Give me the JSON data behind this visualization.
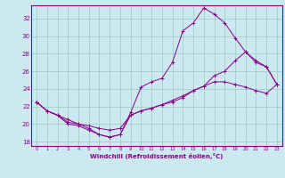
{
  "xlabel": "Windchill (Refroidissement éolien,°C)",
  "bg_color": "#cce8f0",
  "grid_color": "#99ccbb",
  "line_color": "#880088",
  "spine_color": "#880088",
  "xlim": [
    -0.5,
    23.5
  ],
  "ylim": [
    17.5,
    33.5
  ],
  "yticks": [
    18,
    20,
    22,
    24,
    26,
    28,
    30,
    32
  ],
  "xticks": [
    0,
    1,
    2,
    3,
    4,
    5,
    6,
    7,
    8,
    9,
    10,
    11,
    12,
    13,
    14,
    15,
    16,
    17,
    18,
    19,
    20,
    21,
    22,
    23
  ],
  "series1_x": [
    0,
    1,
    2,
    3,
    4,
    5,
    6,
    7,
    8,
    9,
    10,
    11,
    12,
    13,
    14,
    15,
    16,
    17,
    18,
    19,
    20,
    21,
    22,
    23
  ],
  "series1_y": [
    22.5,
    21.5,
    21.0,
    20.2,
    20.0,
    19.5,
    18.8,
    18.5,
    18.8,
    21.3,
    24.2,
    24.8,
    25.2,
    27.0,
    30.6,
    31.5,
    33.2,
    32.5,
    31.5,
    29.8,
    28.2,
    27.2,
    26.5,
    24.5
  ],
  "series2_x": [
    0,
    1,
    2,
    3,
    4,
    5,
    6,
    7,
    8,
    9,
    10,
    11,
    12,
    13,
    14,
    15,
    16,
    17,
    18,
    19,
    20,
    21,
    22,
    23
  ],
  "series2_y": [
    22.5,
    21.5,
    21.0,
    20.5,
    20.0,
    19.8,
    19.5,
    19.3,
    19.5,
    21.0,
    21.5,
    21.8,
    22.2,
    22.7,
    23.2,
    23.8,
    24.3,
    24.8,
    24.8,
    24.5,
    24.2,
    23.8,
    23.5,
    24.5
  ],
  "series3_x": [
    0,
    1,
    2,
    3,
    4,
    5,
    6,
    7,
    8,
    9,
    10,
    11,
    12,
    13,
    14,
    15,
    16,
    17,
    18,
    19,
    20,
    21,
    22,
    23
  ],
  "series3_y": [
    22.5,
    21.5,
    21.0,
    20.0,
    19.8,
    19.3,
    18.8,
    18.5,
    18.8,
    21.0,
    21.5,
    21.8,
    22.2,
    22.5,
    23.0,
    23.8,
    24.3,
    25.5,
    26.0,
    27.2,
    28.2,
    27.0,
    26.5,
    24.5
  ]
}
